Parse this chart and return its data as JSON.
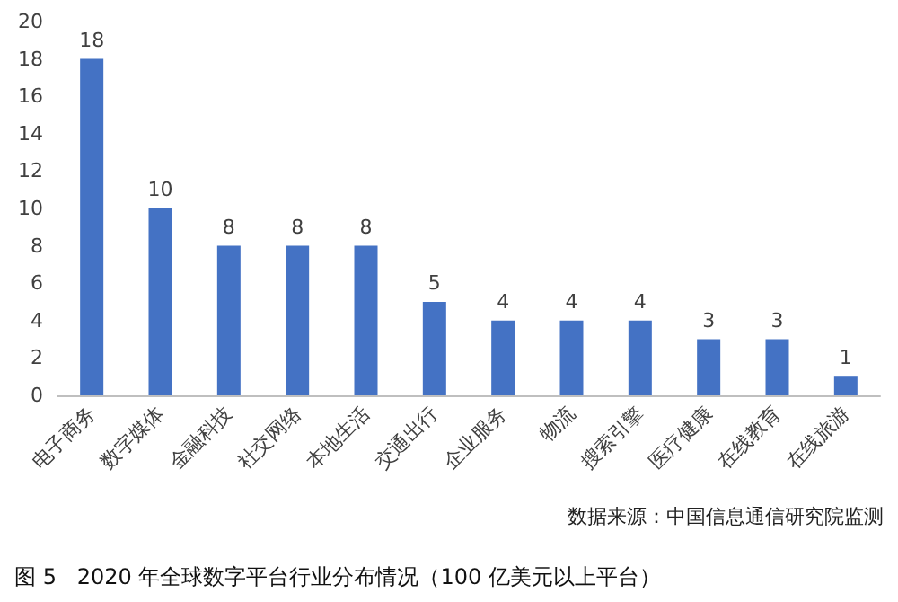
{
  "chart_data": {
    "type": "bar",
    "title": "图 5   2020 年全球数字平台行业分布情况（100 亿美元以上平台）",
    "categories": [
      "电子商务",
      "数字媒体",
      "金融科技",
      "社交网络",
      "本地生活",
      "交通出行",
      "企业服务",
      "物流",
      "搜索引擎",
      "医疗健康",
      "在线教育",
      "在线旅游"
    ],
    "values": [
      18,
      10,
      8,
      8,
      8,
      5,
      4,
      4,
      4,
      3,
      3,
      1
    ],
    "color": "#4472c4",
    "ylim": [
      0,
      20
    ],
    "yticks": [
      0,
      2,
      4,
      6,
      8,
      10,
      12,
      14,
      16,
      18,
      20
    ],
    "grid": false,
    "data_labels": true,
    "annotations": [
      "数据来源：中国信息通信研究院监测"
    ]
  }
}
